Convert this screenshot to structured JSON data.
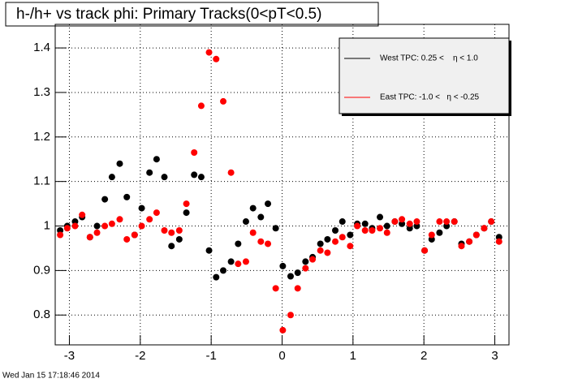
{
  "chart_data": {
    "type": "scatter",
    "title": "h-/h+ vs track phi: Primary Tracks(0<pT<0.5)",
    "date": "Wed Jan 15 17:18:46 2014",
    "x": [
      -3.13,
      -3.03,
      -2.92,
      -2.82,
      -2.71,
      -2.61,
      -2.5,
      -2.4,
      -2.29,
      -2.19,
      -2.08,
      -1.98,
      -1.87,
      -1.77,
      -1.66,
      -1.56,
      -1.45,
      -1.35,
      -1.24,
      -1.14,
      -1.03,
      -0.93,
      -0.83,
      -0.72,
      -0.62,
      -0.51,
      -0.41,
      -0.3,
      -0.2,
      -0.09,
      0.01,
      0.12,
      0.22,
      0.33,
      0.43,
      0.54,
      0.64,
      0.75,
      0.85,
      0.96,
      1.06,
      1.17,
      1.27,
      1.38,
      1.48,
      1.59,
      1.69,
      1.8,
      1.9,
      2.01,
      2.11,
      2.22,
      2.32,
      2.43,
      2.53,
      2.64,
      2.74,
      2.85,
      2.95,
      3.06
    ],
    "series": [
      {
        "name": "West TPC: 0.25 <    η < 1.0",
        "color": "#000000",
        "values": [
          0.99,
          1.0,
          1.01,
          1.02,
          0.975,
          1.0,
          1.06,
          1.11,
          1.14,
          1.065,
          0.98,
          1.04,
          1.12,
          1.15,
          1.11,
          0.955,
          0.97,
          1.03,
          1.115,
          1.11,
          0.945,
          0.885,
          0.9,
          0.92,
          0.96,
          1.01,
          1.04,
          1.02,
          1.05,
          0.995,
          0.91,
          0.887,
          0.895,
          0.92,
          0.93,
          0.96,
          0.97,
          0.99,
          1.01,
          0.98,
          1.005,
          1.005,
          0.995,
          1.02,
          1.0,
          1.01,
          1.005,
          0.995,
          1.0,
          0.945,
          0.97,
          0.985,
          1.0,
          1.01,
          0.96,
          0.965,
          0.98,
          0.995,
          1.01,
          0.975
        ]
      },
      {
        "name": "East TPC: -1.0 <   η < -0.25",
        "color": "#ff0000",
        "values": [
          0.98,
          0.995,
          1.0,
          1.025,
          0.975,
          0.985,
          1.0,
          1.005,
          1.015,
          0.97,
          0.98,
          1.0,
          1.015,
          1.03,
          0.99,
          0.985,
          0.99,
          1.05,
          1.165,
          1.27,
          1.39,
          1.375,
          1.28,
          1.12,
          0.915,
          0.92,
          0.985,
          0.965,
          0.96,
          0.86,
          0.766,
          0.8,
          0.86,
          0.905,
          0.925,
          0.945,
          0.94,
          0.965,
          0.975,
          0.955,
          1.0,
          0.99,
          0.99,
          0.995,
          0.985,
          1.01,
          1.015,
          1.005,
          1.01,
          0.945,
          0.98,
          1.01,
          1.01,
          1.01,
          0.955,
          0.965,
          0.98,
          0.995,
          1.01,
          0.965
        ]
      }
    ],
    "xlim": [
      -3.2,
      3.2
    ],
    "xticks": [
      -3,
      -2,
      -1,
      0,
      1,
      2,
      3
    ],
    "ylim": [
      0.733,
      1.453
    ],
    "yticks": [
      0.8,
      0.9,
      1,
      1.1,
      1.2,
      1.3,
      1.4
    ],
    "grid": true,
    "legend": "top-right"
  }
}
